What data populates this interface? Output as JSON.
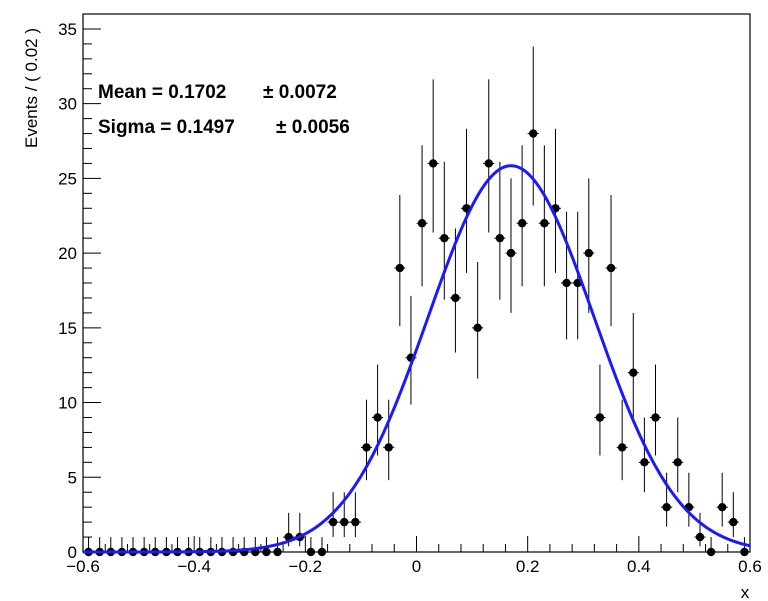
{
  "chart_data": {
    "type": "scatter",
    "xlabel": "x",
    "ylabel": "Events / ( 0.02 )",
    "xlim": [
      -0.6,
      0.6
    ],
    "ylim": [
      0,
      36
    ],
    "x_ticks": [
      -0.6,
      -0.4,
      -0.2,
      0,
      0.2,
      0.4,
      0.6
    ],
    "x_tick_labels": [
      "−0.6",
      "−0.4",
      "−0.2",
      "0",
      "0.2",
      "0.4",
      "0.6"
    ],
    "y_ticks": [
      0,
      5,
      10,
      15,
      20,
      25,
      30,
      35
    ],
    "y_tick_labels": [
      "0",
      "5",
      "10",
      "15",
      "20",
      "25",
      "30",
      "35"
    ],
    "bin_width": 0.02,
    "annotations": [
      {
        "label": "Mean = 0.1702",
        "error": "± 0.0072"
      },
      {
        "label": "Sigma = 0.1497",
        "error": "± 0.0056"
      }
    ],
    "series": [
      {
        "kind": "data-points",
        "color": "#000000",
        "x": [
          -0.59,
          -0.57,
          -0.55,
          -0.53,
          -0.51,
          -0.49,
          -0.47,
          -0.45,
          -0.43,
          -0.41,
          -0.39,
          -0.37,
          -0.35,
          -0.33,
          -0.31,
          -0.29,
          -0.27,
          -0.25,
          -0.23,
          -0.21,
          -0.19,
          -0.17,
          -0.15,
          -0.13,
          -0.11,
          -0.09,
          -0.07,
          -0.05,
          -0.03,
          -0.01,
          0.01,
          0.03,
          0.05,
          0.07,
          0.09,
          0.11,
          0.13,
          0.15,
          0.17,
          0.19,
          0.21,
          0.23,
          0.25,
          0.27,
          0.29,
          0.31,
          0.33,
          0.35,
          0.37,
          0.39,
          0.41,
          0.43,
          0.45,
          0.47,
          0.49,
          0.51,
          0.53,
          0.55,
          0.57,
          0.59
        ],
        "y": [
          0,
          0,
          0,
          0,
          0,
          0,
          0,
          0,
          0,
          0,
          0,
          0,
          0,
          0,
          0,
          0,
          0,
          0,
          1,
          1,
          0,
          0,
          2,
          2,
          2,
          7,
          9,
          7,
          19,
          13,
          22,
          26,
          21,
          17,
          23,
          15,
          26,
          21,
          20,
          22,
          28,
          22,
          23,
          18,
          18,
          20,
          9,
          19,
          7,
          12,
          6,
          9,
          3,
          6,
          3,
          1,
          0,
          3,
          2,
          0
        ]
      },
      {
        "kind": "gaussian-fit",
        "color": "#1a1aff",
        "mean": 0.1702,
        "sigma": 0.1497,
        "peak": 25.85
      }
    ]
  }
}
